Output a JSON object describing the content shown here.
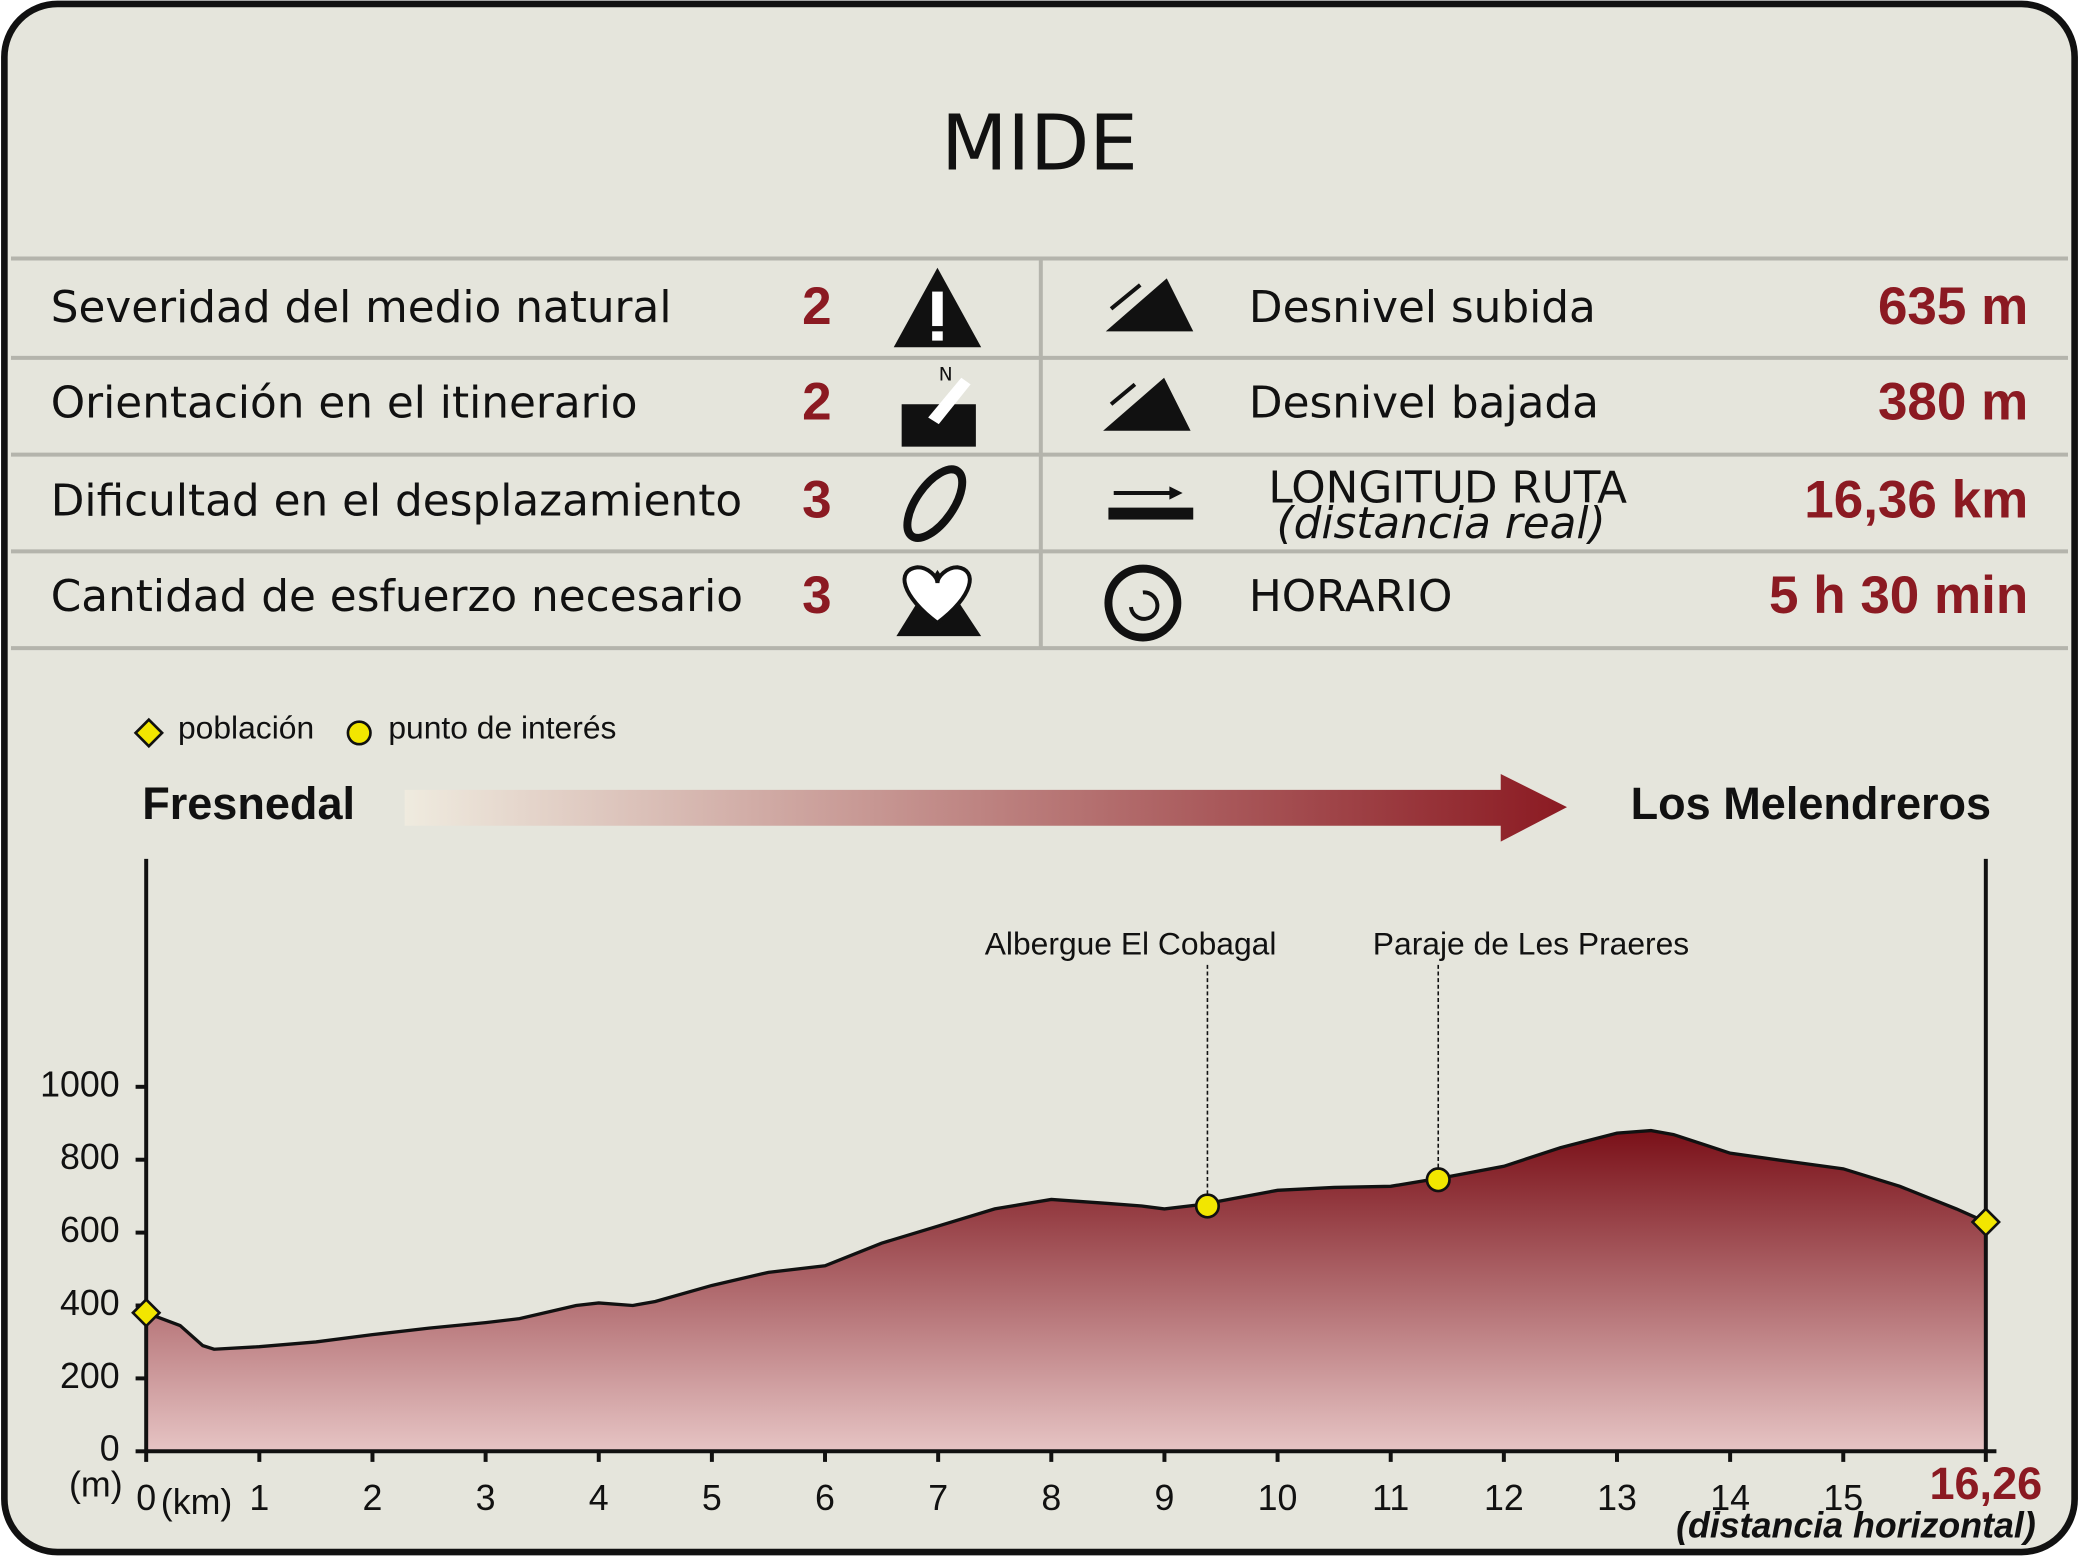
{
  "mide": {
    "title": "MIDE",
    "left_rows": [
      {
        "label": "Severidad del medio natural",
        "value": 2
      },
      {
        "label": "Orientación en el itinerario",
        "value": 2
      },
      {
        "label": "Dificultad en el desplazamiento",
        "value": 3
      },
      {
        "label": "Cantidad de esfuerzo necesario",
        "value": 3
      }
    ],
    "right_rows": [
      {
        "label": "Desnivel subida",
        "value": "635 m"
      },
      {
        "label": "Desnivel bajada",
        "value": "380 m"
      },
      {
        "label": "LONGITUD RUTA",
        "sublabel": "(distancia real)",
        "value": "16,36 km"
      },
      {
        "label": "HORARIO",
        "value": "5 h 30 min"
      }
    ]
  },
  "chart_data": {
    "type": "area",
    "start": "Fresnedal",
    "end": "Los Melendreros",
    "y_unit": "(m)",
    "x_unit": "(km)",
    "x_note": "(distancia horizontal)",
    "x": [
      0,
      0.3,
      0.5,
      0.6,
      1,
      1.5,
      2,
      2.5,
      3,
      3.3,
      3.8,
      4,
      4.3,
      4.5,
      5,
      5.5,
      6,
      6.5,
      7,
      7.5,
      8,
      8.5,
      8.8,
      9,
      9.3,
      9.5,
      10,
      10.5,
      11,
      11.5,
      12,
      12.5,
      13,
      13.3,
      13.5,
      14,
      14.5,
      15,
      15.5,
      16,
      16.26
    ],
    "values": [
      380,
      345,
      290,
      280,
      287,
      300,
      320,
      338,
      353,
      364,
      400,
      407,
      400,
      411,
      455,
      491,
      509,
      571,
      618,
      665,
      691,
      680,
      673,
      665,
      676,
      687,
      716,
      724,
      727,
      753,
      782,
      833,
      873,
      880,
      869,
      818,
      796,
      775,
      727,
      665,
      629
    ],
    "color": "#7a1018",
    "markers": [
      {
        "name": "población",
        "shape": "diamond",
        "color": "#f2e600",
        "x": [
          0,
          16.26
        ],
        "values": [
          380,
          629
        ]
      },
      {
        "name": "punto de interés",
        "shape": "circle",
        "color": "#f2e600",
        "x": [
          9.38,
          11.42
        ],
        "values": [
          673,
          745
        ],
        "labels": [
          "Albergue El Cobagal",
          "Paraje de Les Praeres"
        ]
      }
    ],
    "xlim": [
      0,
      16.26
    ],
    "ylim": [
      0,
      1600
    ],
    "xticks": [
      0,
      1,
      2,
      3,
      4,
      5,
      6,
      7,
      8,
      9,
      10,
      11,
      12,
      13,
      14,
      15,
      {
        "value": 16.26,
        "label": "16,26"
      }
    ],
    "yticks": [
      0,
      200,
      400,
      600,
      800,
      1000
    ]
  }
}
